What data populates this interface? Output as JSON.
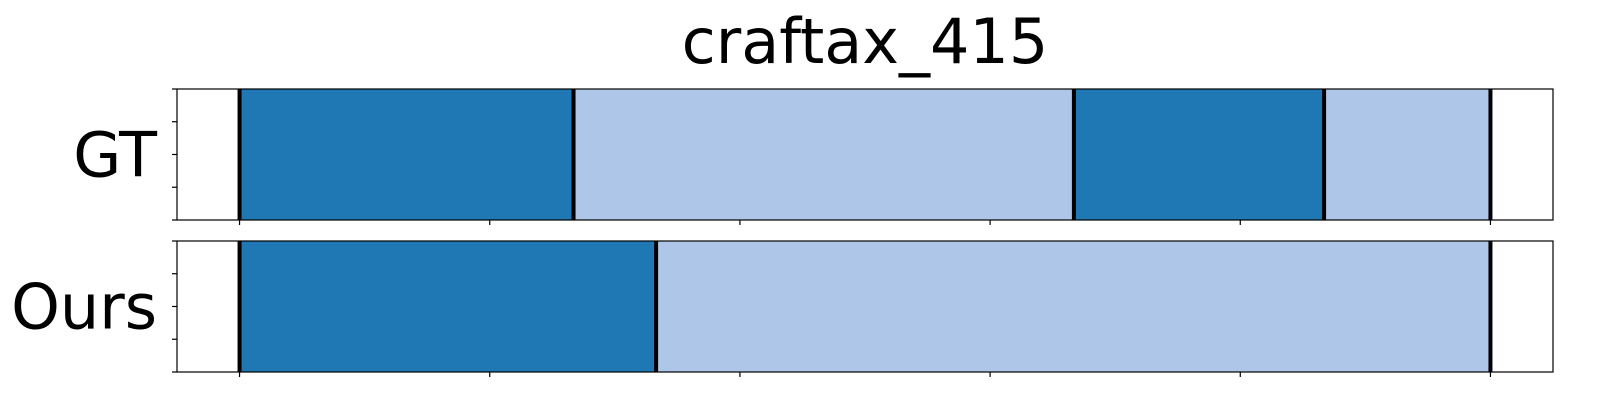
{
  "chart_data": {
    "type": "bar",
    "subtype": "segmentation-timeline",
    "title": "craftax_415",
    "xlim": [
      0,
      11
    ],
    "x_ticks": [
      0.5,
      2.5,
      4.5,
      6.5,
      8.5,
      10.5
    ],
    "y_ticks_per_row": 5,
    "grid": false,
    "colors": {
      "dark": "#1f77b4",
      "light": "#aec7e8",
      "boundary": "#000000",
      "frame": "#000000"
    },
    "rows": [
      {
        "label": "GT",
        "segments": [
          {
            "start": 0.5,
            "end": 3.17,
            "class": "dark"
          },
          {
            "start": 3.17,
            "end": 7.17,
            "class": "light"
          },
          {
            "start": 7.17,
            "end": 9.17,
            "class": "dark"
          },
          {
            "start": 9.17,
            "end": 10.5,
            "class": "light"
          }
        ]
      },
      {
        "label": "Ours",
        "segments": [
          {
            "start": 0.5,
            "end": 3.83,
            "class": "dark"
          },
          {
            "start": 3.83,
            "end": 10.5,
            "class": "light"
          }
        ]
      }
    ]
  }
}
